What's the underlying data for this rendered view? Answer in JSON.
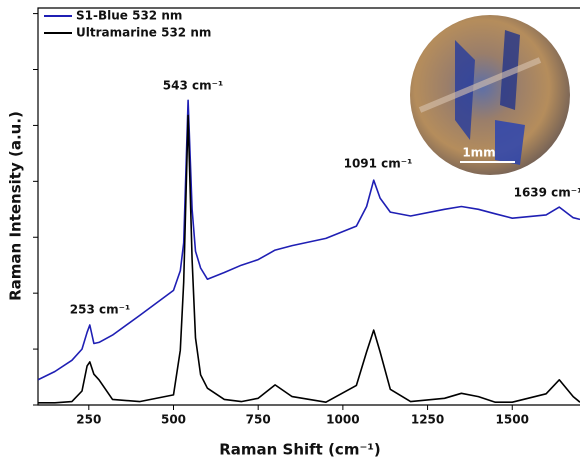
{
  "chart_data": {
    "type": "line",
    "x_label": "Raman Shift (cm⁻¹)",
    "y_label": "Raman Intensity (a.u.)",
    "x": [
      100,
      150,
      200,
      230,
      245,
      253,
      265,
      280,
      320,
      400,
      500,
      520,
      530,
      543,
      555,
      565,
      580,
      600,
      650,
      700,
      750,
      800,
      850,
      950,
      1040,
      1070,
      1091,
      1110,
      1140,
      1200,
      1300,
      1350,
      1400,
      1450,
      1500,
      1600,
      1639,
      1680,
      1700
    ],
    "series": [
      {
        "name": "S1-Blue 532 nm",
        "color": "#1f1fb4",
        "values": [
          0.45,
          0.6,
          0.8,
          1.0,
          1.3,
          1.43,
          1.1,
          1.12,
          1.25,
          1.6,
          2.05,
          2.4,
          2.9,
          5.45,
          3.5,
          2.75,
          2.45,
          2.25,
          2.37,
          2.5,
          2.6,
          2.77,
          2.85,
          2.98,
          3.2,
          3.55,
          4.02,
          3.7,
          3.45,
          3.38,
          3.5,
          3.55,
          3.5,
          3.42,
          3.34,
          3.4,
          3.54,
          3.35,
          3.32
        ]
      },
      {
        "name": "Ultramarine 532 nm",
        "color": "#000000",
        "values": [
          0.04,
          0.04,
          0.06,
          0.25,
          0.7,
          0.77,
          0.55,
          0.45,
          0.1,
          0.06,
          0.18,
          0.98,
          2.2,
          5.18,
          2.6,
          1.2,
          0.54,
          0.3,
          0.1,
          0.06,
          0.12,
          0.36,
          0.15,
          0.05,
          0.35,
          0.95,
          1.34,
          0.95,
          0.28,
          0.06,
          0.12,
          0.21,
          0.15,
          0.05,
          0.05,
          0.2,
          0.45,
          0.15,
          0.05
        ]
      }
    ],
    "annotations": [
      "253 cm⁻¹",
      "543 cm⁻¹",
      "1091 cm⁻¹",
      "1639 cm⁻¹"
    ],
    "inset_label": "1mm",
    "xlim": [
      100,
      1700
    ],
    "xticks": [
      250,
      500,
      750,
      1000,
      1250,
      1500
    ],
    "ylim": [
      0,
      7.1
    ],
    "yticks": [
      0,
      1,
      2,
      3,
      4,
      5,
      6,
      7
    ]
  }
}
